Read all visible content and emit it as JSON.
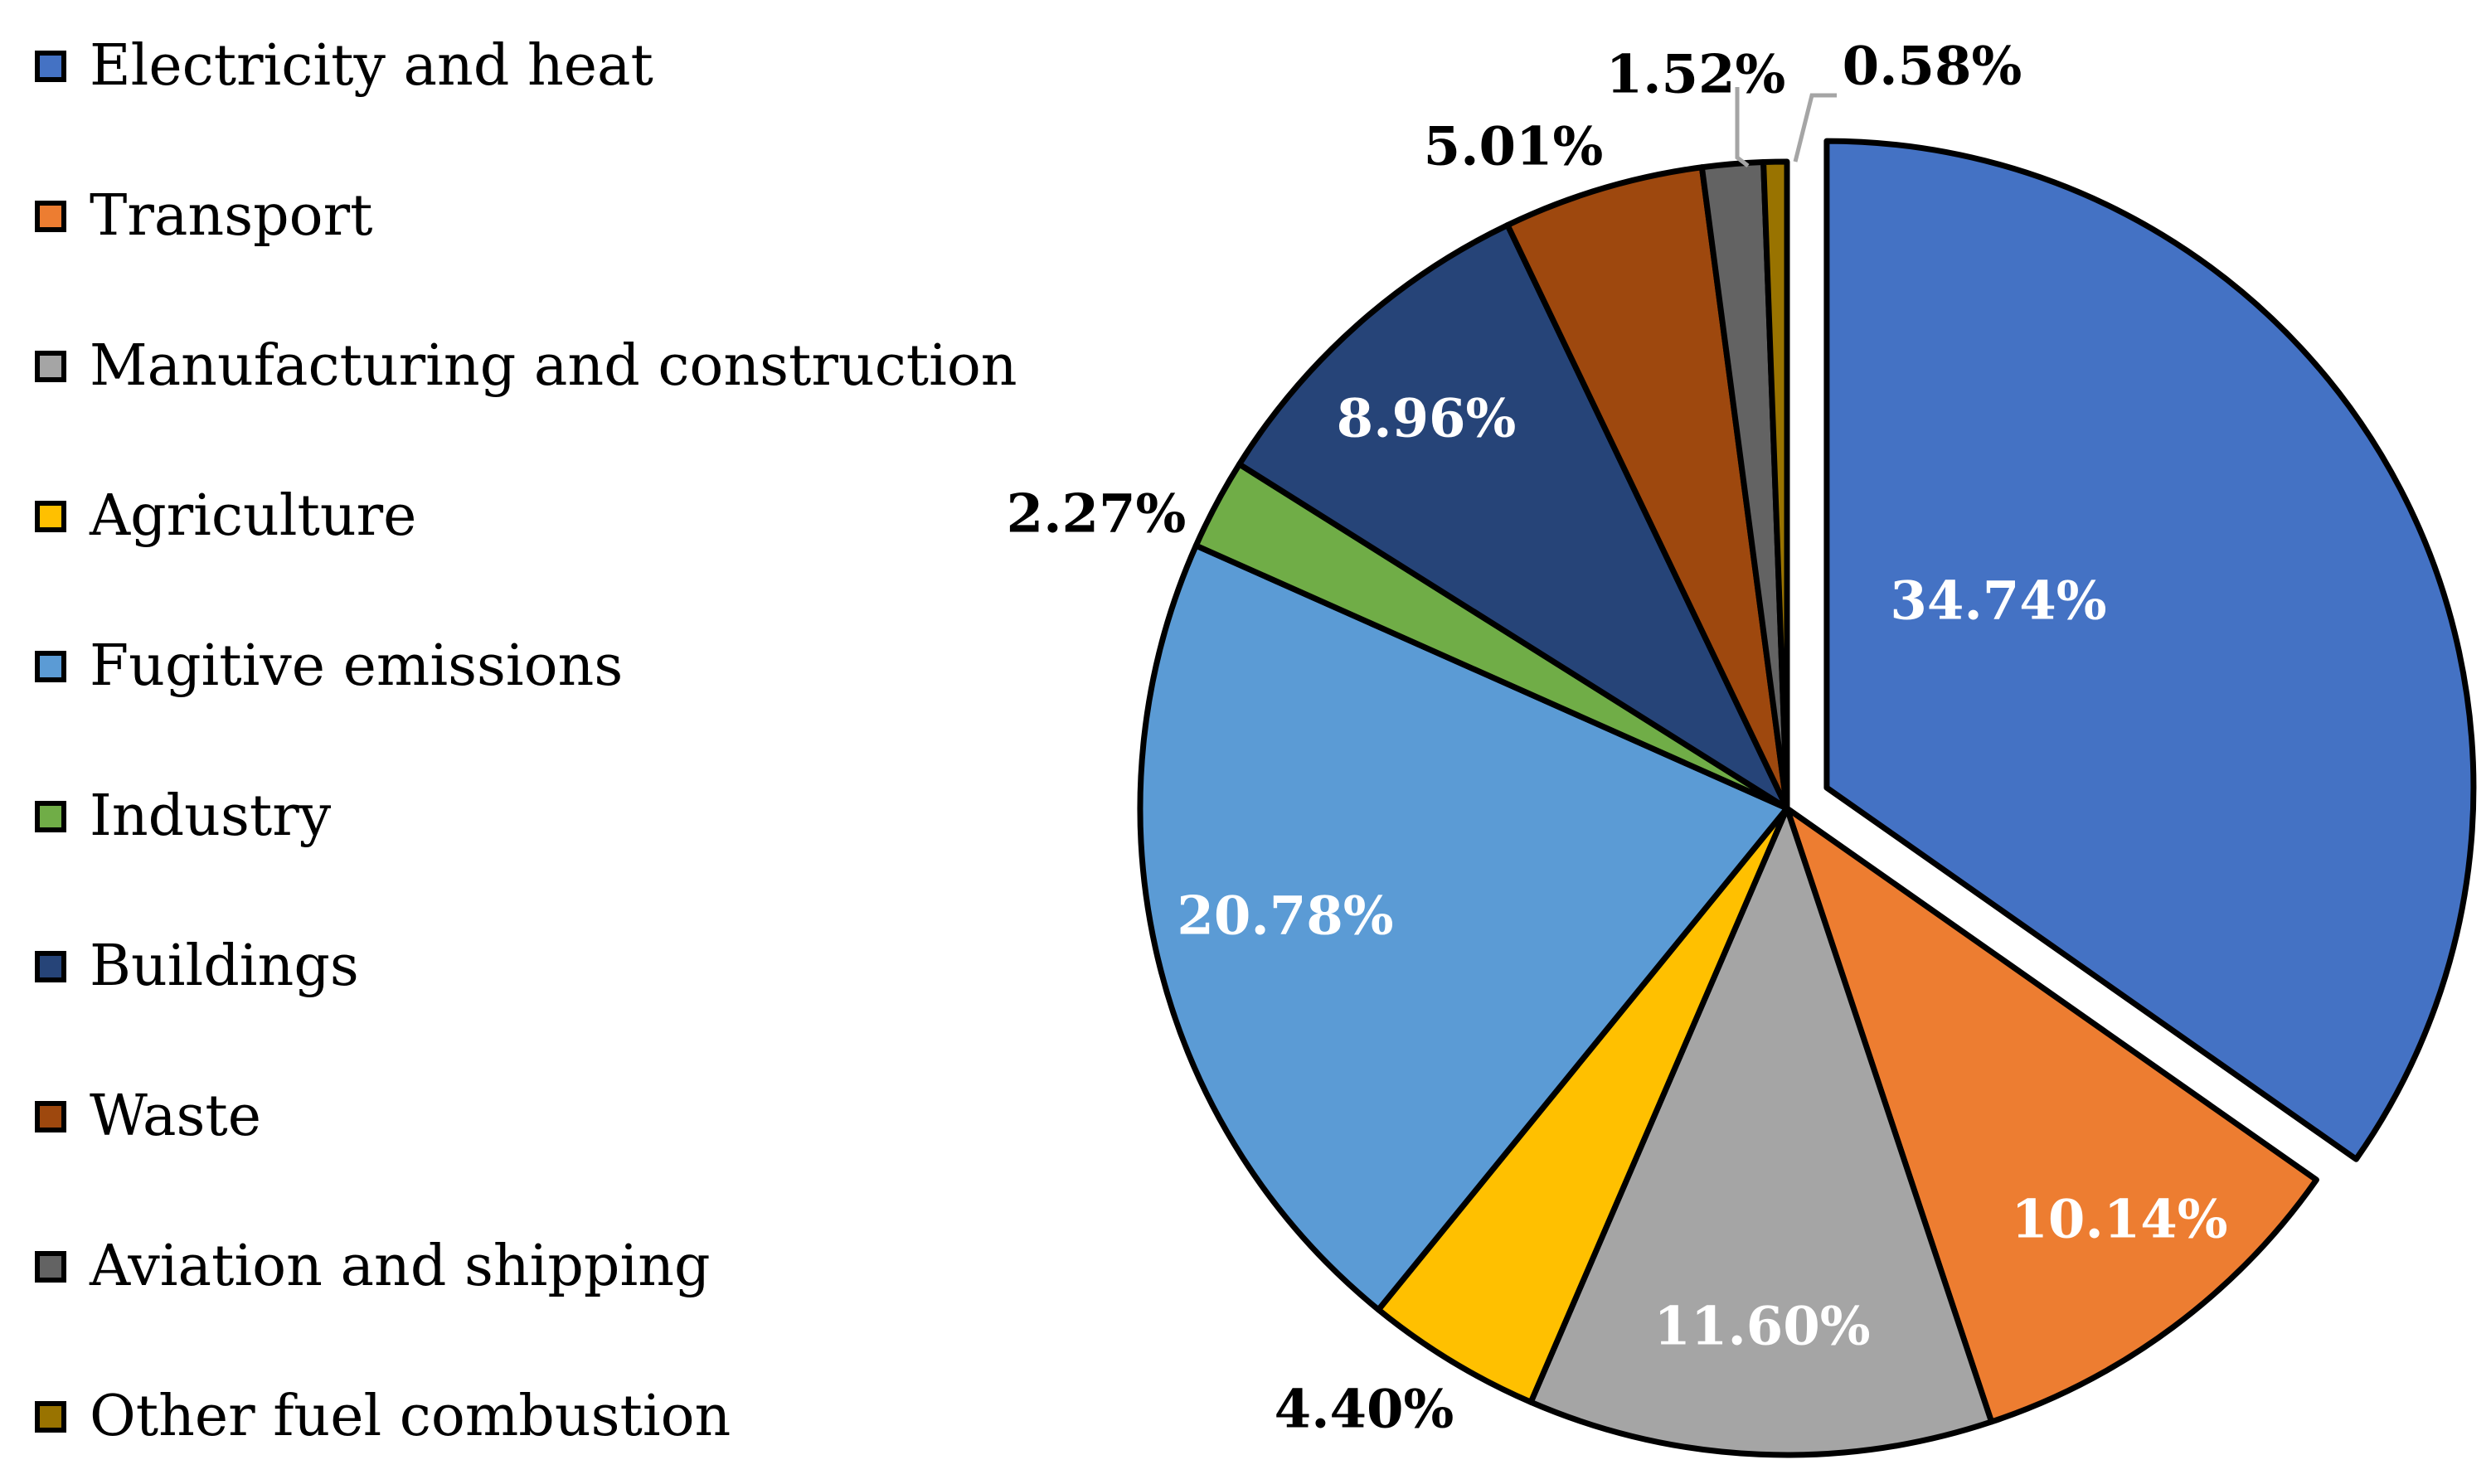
{
  "chart_data": {
    "type": "pie",
    "title": "",
    "categories": [
      "Electricity and heat",
      "Transport",
      "Manufacturing and construction",
      "Agriculture",
      "Fugitive emissions",
      "Industry",
      "Buildings",
      "Waste",
      "Aviation and shipping",
      "Other fuel combustion"
    ],
    "values": [
      34.74,
      10.14,
      11.6,
      4.4,
      20.78,
      2.27,
      8.96,
      5.01,
      1.52,
      0.58
    ],
    "labels": [
      "34.74%",
      "10.14%",
      "11.60%",
      "4.40%",
      "20.78%",
      "2.27%",
      "8.96%",
      "5.01%",
      "1.52%",
      "0.58%"
    ],
    "colors": [
      "#4472C4",
      "#ED7D31",
      "#A5A5A5",
      "#FFC000",
      "#5B9BD5",
      "#70AD47",
      "#264478",
      "#9E480E",
      "#636363",
      "#997300"
    ],
    "label_colors": [
      "#ffffff",
      "#ffffff",
      "#ffffff",
      "#000000",
      "#ffffff",
      "#000000",
      "#ffffff",
      "#000000",
      "#000000",
      "#000000"
    ],
    "exploded_slice": "Electricity and heat",
    "legend_position": "left"
  }
}
